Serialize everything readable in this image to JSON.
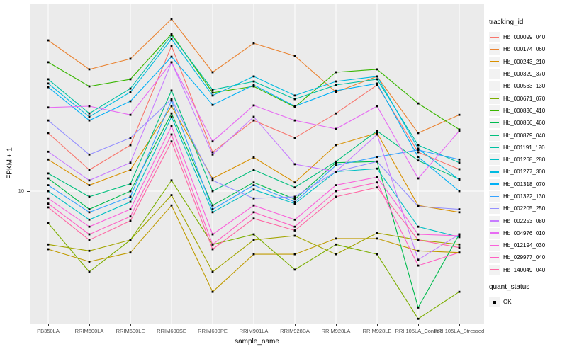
{
  "figure": {
    "background": "#FFFFFF",
    "panel_bg": "#EBEBEB",
    "grid_color": "#FFFFFF",
    "tick_color": "#333333",
    "tick_label_color": "#4D4D4D"
  },
  "chart_data": {
    "type": "line",
    "title": "",
    "xlabel": "sample_name",
    "ylabel": "FPKM + 1",
    "y_scale": "log10",
    "y_tick_labels": [
      "10"
    ],
    "y_tick_values": [
      10
    ],
    "ylim": [
      1.8,
      100
    ],
    "grid": "vertical category gridlines + horizontal gridline at y=10",
    "legend_position": "right",
    "point_marker": "black-square",
    "categories": [
      "PB350LA",
      "RRIM600LA",
      "RRIM600LE",
      "RRIM600SE",
      "RRIM600PE",
      "RRIM901LA",
      "RRIM928BA",
      "RRIM928LA",
      "RRIM928LE",
      "RRII105LA_Control",
      "RRII105LA_Stressed"
    ],
    "series": [
      {
        "name": "Hb_000099_040",
        "color": "#F8766D",
        "values": [
          21.3,
          13.2,
          18.2,
          66.1,
          16.6,
          25.1,
          20,
          27.5,
          39.8,
          16.6,
          13.3
        ]
      },
      {
        "name": "Hb_000174_060",
        "color": "#EA8331",
        "values": [
          71.1,
          48.8,
          56,
          93.8,
          47,
          68.5,
          58.1,
          36.3,
          44.5,
          21.3,
          27
        ]
      },
      {
        "name": "Hb_000243_210",
        "color": "#D89000",
        "values": [
          15.1,
          10.8,
          13.2,
          30.2,
          11.8,
          15.5,
          11.2,
          18.2,
          21.3,
          8.3,
          7.6
        ]
      },
      {
        "name": "Hb_000329_370",
        "color": "#C09B00",
        "values": [
          4.7,
          4,
          4.5,
          8.3,
          2.7,
          4.4,
          4.4,
          5.4,
          5.4,
          4.6,
          4.5
        ]
      },
      {
        "name": "Hb_000563_130",
        "color": "#A3A500",
        "values": [
          5,
          4.6,
          5.3,
          9.5,
          3.5,
          5.3,
          5.6,
          4.4,
          5.8,
          5.3,
          5
        ]
      },
      {
        "name": "Hb_000671_070",
        "color": "#7CAE00",
        "values": [
          6.6,
          3.5,
          5.3,
          11.5,
          5,
          5.7,
          3.6,
          5,
          4.4,
          1.9,
          2.7
        ]
      },
      {
        "name": "Hb_000836_410",
        "color": "#39B600",
        "values": [
          53.5,
          39.1,
          42.9,
          77.4,
          36,
          39.1,
          29.9,
          47,
          48.8,
          31.3,
          22.3
        ]
      },
      {
        "name": "Hb_000866_460",
        "color": "#00BB4E",
        "values": [
          11.8,
          7.9,
          10,
          27.5,
          8.3,
          11.2,
          9,
          14.5,
          14.7,
          2.2,
          5.7
        ]
      },
      {
        "name": "Hb_000879_040",
        "color": "#00BF7D",
        "values": [
          12.6,
          9.3,
          11,
          37,
          10,
          13.2,
          10.5,
          14.7,
          21.9,
          14.9,
          11.7
        ]
      },
      {
        "name": "Hb_001191_120",
        "color": "#00C1A3",
        "values": [
          42.9,
          27.5,
          38,
          75.9,
          37.4,
          41.7,
          33.1,
          39.8,
          42.9,
          18.2,
          14.5
        ]
      },
      {
        "name": "Hb_001268_280",
        "color": "#00BFC4",
        "values": [
          10,
          6.9,
          8.7,
          26.3,
          7.6,
          10.2,
          8.5,
          12.9,
          13.4,
          6.3,
          5.5
        ]
      },
      {
        "name": "Hb_001277_300",
        "color": "#00BAE0",
        "values": [
          40.6,
          26.3,
          36.3,
          72.4,
          34.7,
          44.5,
          34.7,
          41.7,
          44.5,
          17.4,
          11.6
        ]
      },
      {
        "name": "Hb_001318_070",
        "color": "#00B0F6",
        "values": [
          38.7,
          25.1,
          32.2,
          57.5,
          30.7,
          39.8,
          30.2,
          36.9,
          40.6,
          15.6,
          10
        ]
      },
      {
        "name": "Hb_001322_130",
        "color": "#35A2FF",
        "values": [
          10.8,
          7.6,
          9.3,
          32.5,
          7.9,
          10.8,
          8.7,
          14,
          15.6,
          17.1,
          15.1
        ]
      },
      {
        "name": "Hb_002205_250",
        "color": "#9590FF",
        "values": [
          25.1,
          16.1,
          20,
          33.1,
          11.5,
          9.1,
          9.3,
          12.9,
          14.7,
          8.2,
          7.9
        ]
      },
      {
        "name": "Hb_002253_080",
        "color": "#C77CFF",
        "values": [
          16.7,
          11.5,
          14.5,
          53.5,
          16.1,
          26.3,
          14.2,
          12.9,
          20.9,
          4.1,
          5.7
        ]
      },
      {
        "name": "Hb_004976_010",
        "color": "#E76BF3",
        "values": [
          29.7,
          30.2,
          27,
          53.5,
          19.1,
          30.5,
          25.1,
          22.5,
          30.2,
          11.8,
          21.9
        ]
      },
      {
        "name": "Hb_012194_030",
        "color": "#FA62DB",
        "values": [
          9.1,
          6.3,
          7.9,
          23.3,
          5.7,
          8.3,
          6.9,
          10.8,
          12,
          5.7,
          5.6
        ]
      },
      {
        "name": "Hb_029977_040",
        "color": "#FF61C3",
        "values": [
          8.5,
          5.7,
          7.2,
          20.9,
          5,
          7.6,
          6.3,
          10,
          11.2,
          3.8,
          4.5
        ]
      },
      {
        "name": "Hb_140049_040",
        "color": "#FF67A4",
        "values": [
          8.1,
          5.3,
          6.8,
          19.1,
          4.7,
          7,
          6,
          9.3,
          10.5,
          5.3,
          4.8
        ]
      }
    ]
  },
  "legend": {
    "color_title": "tracking_id",
    "shape_title": "quant_status",
    "shape_items": [
      {
        "label": "OK",
        "marker": "black-square"
      }
    ],
    "key_bg": "#F2F2F2"
  }
}
